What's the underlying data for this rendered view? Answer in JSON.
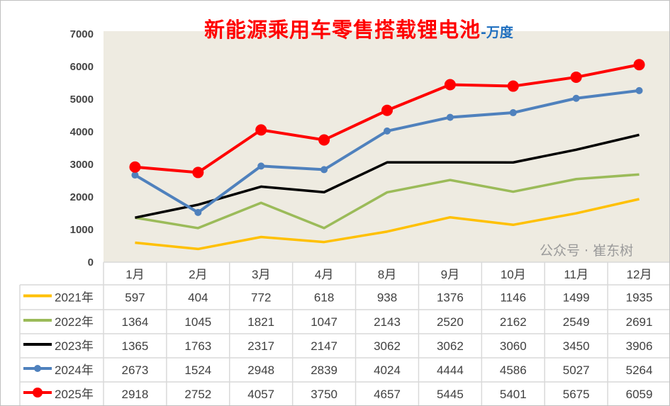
{
  "chart_data": {
    "type": "line",
    "title": "新能源乘用车零售搭载锂电池",
    "unit": "-万度",
    "categories": [
      "1月",
      "2月",
      "3月",
      "4月",
      "8月",
      "9月",
      "10月",
      "11月",
      "12月"
    ],
    "ylim": [
      0,
      7000
    ],
    "yticks": [
      0,
      1000,
      2000,
      3000,
      4000,
      5000,
      6000,
      7000
    ],
    "grid": false,
    "legend": "data-table",
    "series": [
      {
        "name": "2021年",
        "color": "#ffc000",
        "markers": false,
        "values": [
          597,
          404,
          772,
          618,
          938,
          1376,
          1146,
          1499,
          1935
        ]
      },
      {
        "name": "2022年",
        "color": "#9bbb59",
        "markers": false,
        "values": [
          1364,
          1045,
          1821,
          1047,
          2143,
          2520,
          2162,
          2549,
          2691
        ]
      },
      {
        "name": "2023年",
        "color": "#000000",
        "markers": false,
        "values": [
          1365,
          1763,
          2317,
          2147,
          3062,
          3062,
          3060,
          3450,
          3906
        ]
      },
      {
        "name": "2024年",
        "color": "#4f81bd",
        "markers": true,
        "values": [
          2673,
          1524,
          2948,
          2839,
          4024,
          4444,
          4586,
          5027,
          5264
        ]
      },
      {
        "name": "2025年",
        "color": "#ff0000",
        "markers": true,
        "values": [
          2918,
          2752,
          4057,
          3750,
          4657,
          5445,
          5401,
          5675,
          6059
        ]
      }
    ],
    "plot_background": "#eeebe1"
  },
  "watermark": "公众号 · 崔东树"
}
